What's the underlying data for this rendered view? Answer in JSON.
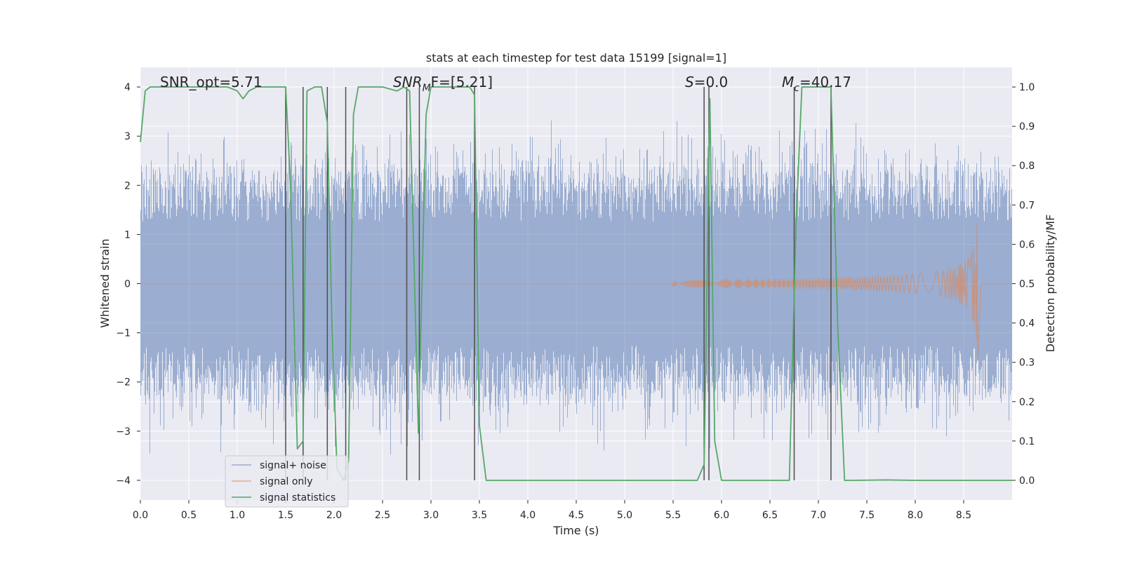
{
  "chart_data": {
    "type": "line",
    "title": "stats at each timestep for test data 15199 [signal=1]",
    "xlabel": "Time (s)",
    "ylabel": "Whitened strain",
    "ylabel_right": "Detection probability/MF",
    "xlim": [
      0,
      9
    ],
    "ylim": [
      -4.4,
      4.4
    ],
    "ylim_right": [
      -0.05,
      1.05
    ],
    "x_ticks": [
      "0.0",
      "0.5",
      "1.0",
      "1.5",
      "2.0",
      "2.5",
      "3.0",
      "3.5",
      "4.0",
      "4.5",
      "5.0",
      "5.5",
      "6.0",
      "6.5",
      "7.0",
      "7.5",
      "8.0",
      "8.5"
    ],
    "y_ticks": [
      "4",
      "3",
      "2",
      "1",
      "0",
      "−1",
      "−2",
      "−3",
      "−4"
    ],
    "y_ticks_right": [
      "1.0",
      "0.9",
      "0.8",
      "0.7",
      "0.6",
      "0.5",
      "0.4",
      "0.3",
      "0.2",
      "0.1",
      "0.0"
    ],
    "grid": true,
    "legend_position": "lower-left",
    "annotations": {
      "snr_opt": "SNR_opt=5.71",
      "snr_mf_main": "SNR",
      "snr_mf_sub": "M",
      "snr_mf_rest": "F=[5.21]",
      "s_main": "S",
      "s_rest": "=0.0",
      "mc_main": "M",
      "mc_sub": "c",
      "mc_rest": "=40.17"
    },
    "series": [
      {
        "name": "signal+ noise",
        "color": "#4c72b0",
        "opacity": 0.5,
        "axis": "left",
        "amplitude_envelope": [
          -3.6,
          3.6
        ],
        "typical_envelope": [
          -2.3,
          2.3
        ]
      },
      {
        "name": "signal only",
        "color": "#dd8452",
        "opacity": 0.6,
        "axis": "left",
        "chirp": {
          "start_time": 5.5,
          "peak_time": 8.65,
          "peak_amplitude": 1.6,
          "min_amplitude": -1.7
        }
      },
      {
        "name": "signal statistics",
        "color": "#55a868",
        "axis": "right",
        "points": [
          [
            0.0,
            0.86
          ],
          [
            0.05,
            0.99
          ],
          [
            0.1,
            1.0
          ],
          [
            0.9,
            1.0
          ],
          [
            1.0,
            0.99
          ],
          [
            1.06,
            0.97
          ],
          [
            1.12,
            0.99
          ],
          [
            1.2,
            1.0
          ],
          [
            1.5,
            1.0
          ],
          [
            1.55,
            0.75
          ],
          [
            1.62,
            0.08
          ],
          [
            1.68,
            0.1
          ],
          [
            1.72,
            0.99
          ],
          [
            1.8,
            1.0
          ],
          [
            1.87,
            1.0
          ],
          [
            1.93,
            0.91
          ],
          [
            1.98,
            0.38
          ],
          [
            2.03,
            0.03
          ],
          [
            2.1,
            0.0
          ],
          [
            2.15,
            0.05
          ],
          [
            2.2,
            0.93
          ],
          [
            2.25,
            1.0
          ],
          [
            2.5,
            1.0
          ],
          [
            2.65,
            0.99
          ],
          [
            2.72,
            1.0
          ],
          [
            2.78,
            0.99
          ],
          [
            2.87,
            0.12
          ],
          [
            2.95,
            0.93
          ],
          [
            3.0,
            1.0
          ],
          [
            3.4,
            1.0
          ],
          [
            3.45,
            0.98
          ],
          [
            3.5,
            0.14
          ],
          [
            3.57,
            0.0
          ],
          [
            5.75,
            0.0
          ],
          [
            5.82,
            0.04
          ],
          [
            5.88,
            0.97
          ],
          [
            5.93,
            0.1
          ],
          [
            6.0,
            0.0
          ],
          [
            6.7,
            0.0
          ],
          [
            6.77,
            0.66
          ],
          [
            6.83,
            1.0
          ],
          [
            7.13,
            1.0
          ],
          [
            7.2,
            0.39
          ],
          [
            7.27,
            0.0
          ],
          [
            7.35,
            0.0
          ],
          [
            7.7,
            0.001
          ],
          [
            8.0,
            0.0
          ],
          [
            9.0,
            0.0
          ]
        ]
      },
      {
        "name": "",
        "color": "#4d4d4d",
        "axis": "left",
        "kind": "vertical_markers",
        "x": [
          1.5,
          1.68,
          1.93,
          2.12,
          2.75,
          2.88,
          3.45,
          5.82,
          5.87,
          6.75,
          7.13
        ],
        "y_from": -4.0,
        "y_to": 4.0
      }
    ]
  }
}
